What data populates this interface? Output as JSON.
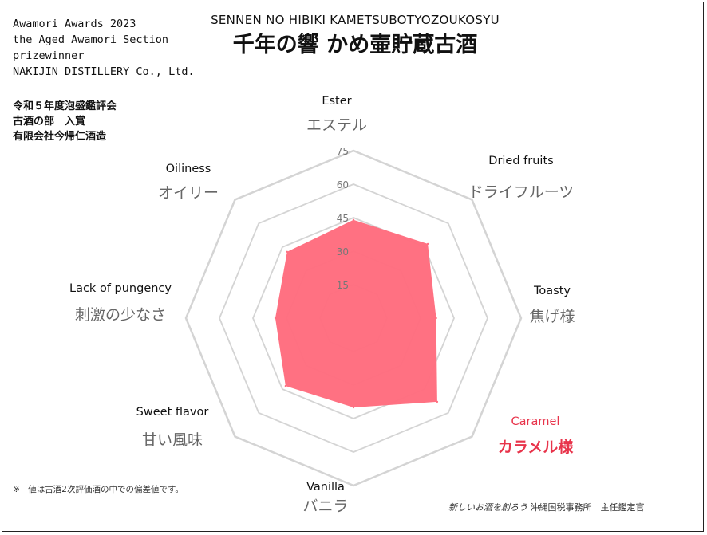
{
  "award_en": [
    "Awamori Awards 2023",
    "the Aged Awamori Section",
    "prizewinner",
    "NAKIJIN DISTILLERY Co., Ltd."
  ],
  "award_jp": [
    "令和５年度泡盛鑑評会",
    "古酒の部　入賞",
    "有限会社今帰仁酒造"
  ],
  "subtitle": "SENNEN NO HIBIKI KAMETSUBOTYOZOUKOSYU",
  "title": "千年の響 かめ壷貯蔵古酒",
  "footnote": "※　値は古酒2次評価酒の中での偏差値です。",
  "credit": {
    "slogan": "新しいお酒を創ろう",
    "office": "沖縄国税事務所　主任鑑定官"
  },
  "colors": {
    "fill": "#ff6e7f",
    "grid": "#d4d4d4",
    "highlight": "#e8344b",
    "axis_jp": "#666666"
  },
  "chart_data": {
    "type": "radar",
    "axes": [
      {
        "en": "Ester",
        "jp": "エステル",
        "highlight": false
      },
      {
        "en": "Dried fruits",
        "jp": "ドライフルーツ",
        "highlight": false
      },
      {
        "en": "Toasty",
        "jp": "焦げ様",
        "highlight": false
      },
      {
        "en": "Caramel",
        "jp": "カラメル様",
        "highlight": true
      },
      {
        "en": "Vanilla",
        "jp": "バニラ",
        "highlight": false
      },
      {
        "en": "Sweet flavor",
        "jp": "甘い風味",
        "highlight": false
      },
      {
        "en": "Lack of pungency",
        "jp": "刺激の少なさ",
        "highlight": false
      },
      {
        "en": "Oiliness",
        "jp": "オイリー",
        "highlight": false
      }
    ],
    "values": [
      44,
      47,
      37,
      53,
      40,
      43,
      35,
      42
    ],
    "ticks": [
      15,
      30,
      45,
      60,
      75
    ],
    "range": [
      0,
      75
    ],
    "grid": true
  }
}
